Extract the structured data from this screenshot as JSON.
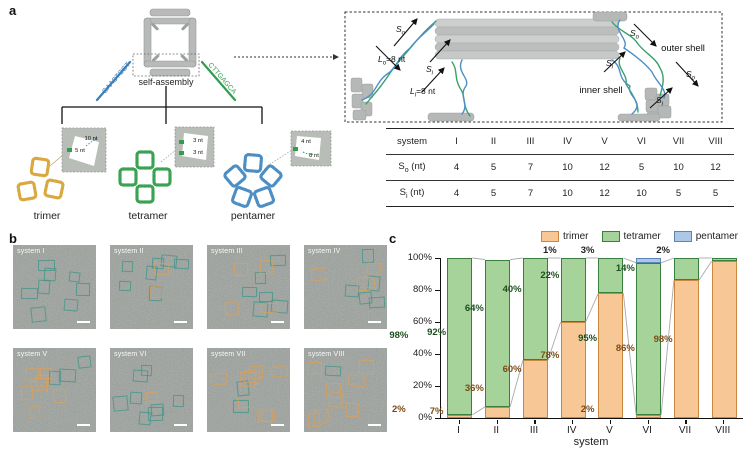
{
  "panel_labels": {
    "a": "a",
    "b": "b",
    "c": "c"
  },
  "panel_a": {
    "self_assembly": "self-assembly",
    "strand_left": "GAACTCGT",
    "strand_right": "CTTGAGCA",
    "strand_left_color": "#3C7EB5",
    "strand_right_color": "#2F9E4F",
    "multimers": [
      {
        "name": "trimer",
        "color": "#D9A93F",
        "inset_labels": [
          "10 nt",
          "5 nt"
        ]
      },
      {
        "name": "tetramer",
        "color": "#3AA353",
        "inset_labels": [
          "3 nt",
          "3 nt"
        ]
      },
      {
        "name": "pentamer",
        "color": "#4D8FC4",
        "inset_labels": [
          "4 nt",
          "8 nt"
        ]
      }
    ],
    "inset": {
      "s_label": "S",
      "l_label": "L",
      "o_sub": "o",
      "i_sub": "i",
      "eq8": "=8 nt",
      "outer_shell": "outer shell",
      "inner_shell": "inner shell"
    },
    "table": {
      "header": "system",
      "s": "S",
      "o": "o",
      "i": "i",
      "nt": " (nt)",
      "systems": [
        "I",
        "II",
        "III",
        "IV",
        "V",
        "VI",
        "VII",
        "VIII"
      ],
      "so_values": [
        4,
        5,
        7,
        10,
        12,
        5,
        10,
        12
      ],
      "si_values": [
        4,
        5,
        7,
        10,
        12,
        10,
        5,
        5
      ]
    }
  },
  "panel_b": {
    "tiles": [
      {
        "label": "system I",
        "green_boxes": 8,
        "orange_boxes": 0
      },
      {
        "label": "system II",
        "green_boxes": 7,
        "orange_boxes": 2
      },
      {
        "label": "system III",
        "green_boxes": 6,
        "orange_boxes": 4
      },
      {
        "label": "system IV",
        "green_boxes": 5,
        "orange_boxes": 4
      },
      {
        "label": "system V",
        "green_boxes": 3,
        "orange_boxes": 7
      },
      {
        "label": "system VI",
        "green_boxes": 8,
        "orange_boxes": 1
      },
      {
        "label": "system VII",
        "green_boxes": 2,
        "orange_boxes": 8
      },
      {
        "label": "system VIII",
        "green_boxes": 1,
        "orange_boxes": 8
      }
    ],
    "box_green_color": "#3d9488",
    "box_orange_color": "#dba05a"
  },
  "chart_data": {
    "type": "bar",
    "stacked": true,
    "categories": [
      "I",
      "II",
      "III",
      "IV",
      "V",
      "VI",
      "VII",
      "VIII"
    ],
    "series": [
      {
        "name": "trimer",
        "fill": "#F7C896",
        "border": "#C9873F",
        "label_color": "#7b4a14",
        "values": [
          2,
          7,
          36,
          60,
          78,
          2,
          86,
          98
        ]
      },
      {
        "name": "tetramer",
        "fill": "#A5D39A",
        "border": "#39803E",
        "label_color": "#1c4f1f",
        "values": [
          98,
          92,
          64,
          40,
          22,
          95,
          14,
          2
        ]
      },
      {
        "name": "pentamer",
        "fill": "#ABC8E8",
        "border": "#5B86B5",
        "label_color": "#222222",
        "values": [
          0,
          0,
          0,
          0,
          1,
          3,
          0,
          0
        ]
      }
    ],
    "xlabel": "system",
    "ylabel": "",
    "ylim": [
      0,
      100
    ],
    "yticks": [
      0,
      20,
      40,
      60,
      80,
      100
    ],
    "ytick_suffix": "%",
    "legend_position": "top-right",
    "grid": false,
    "above_label_rule": "segments smaller than 5% (tetramer VIII 2%) and all pentamer segments (V 1%, VI 3%) are labeled above the bars"
  }
}
